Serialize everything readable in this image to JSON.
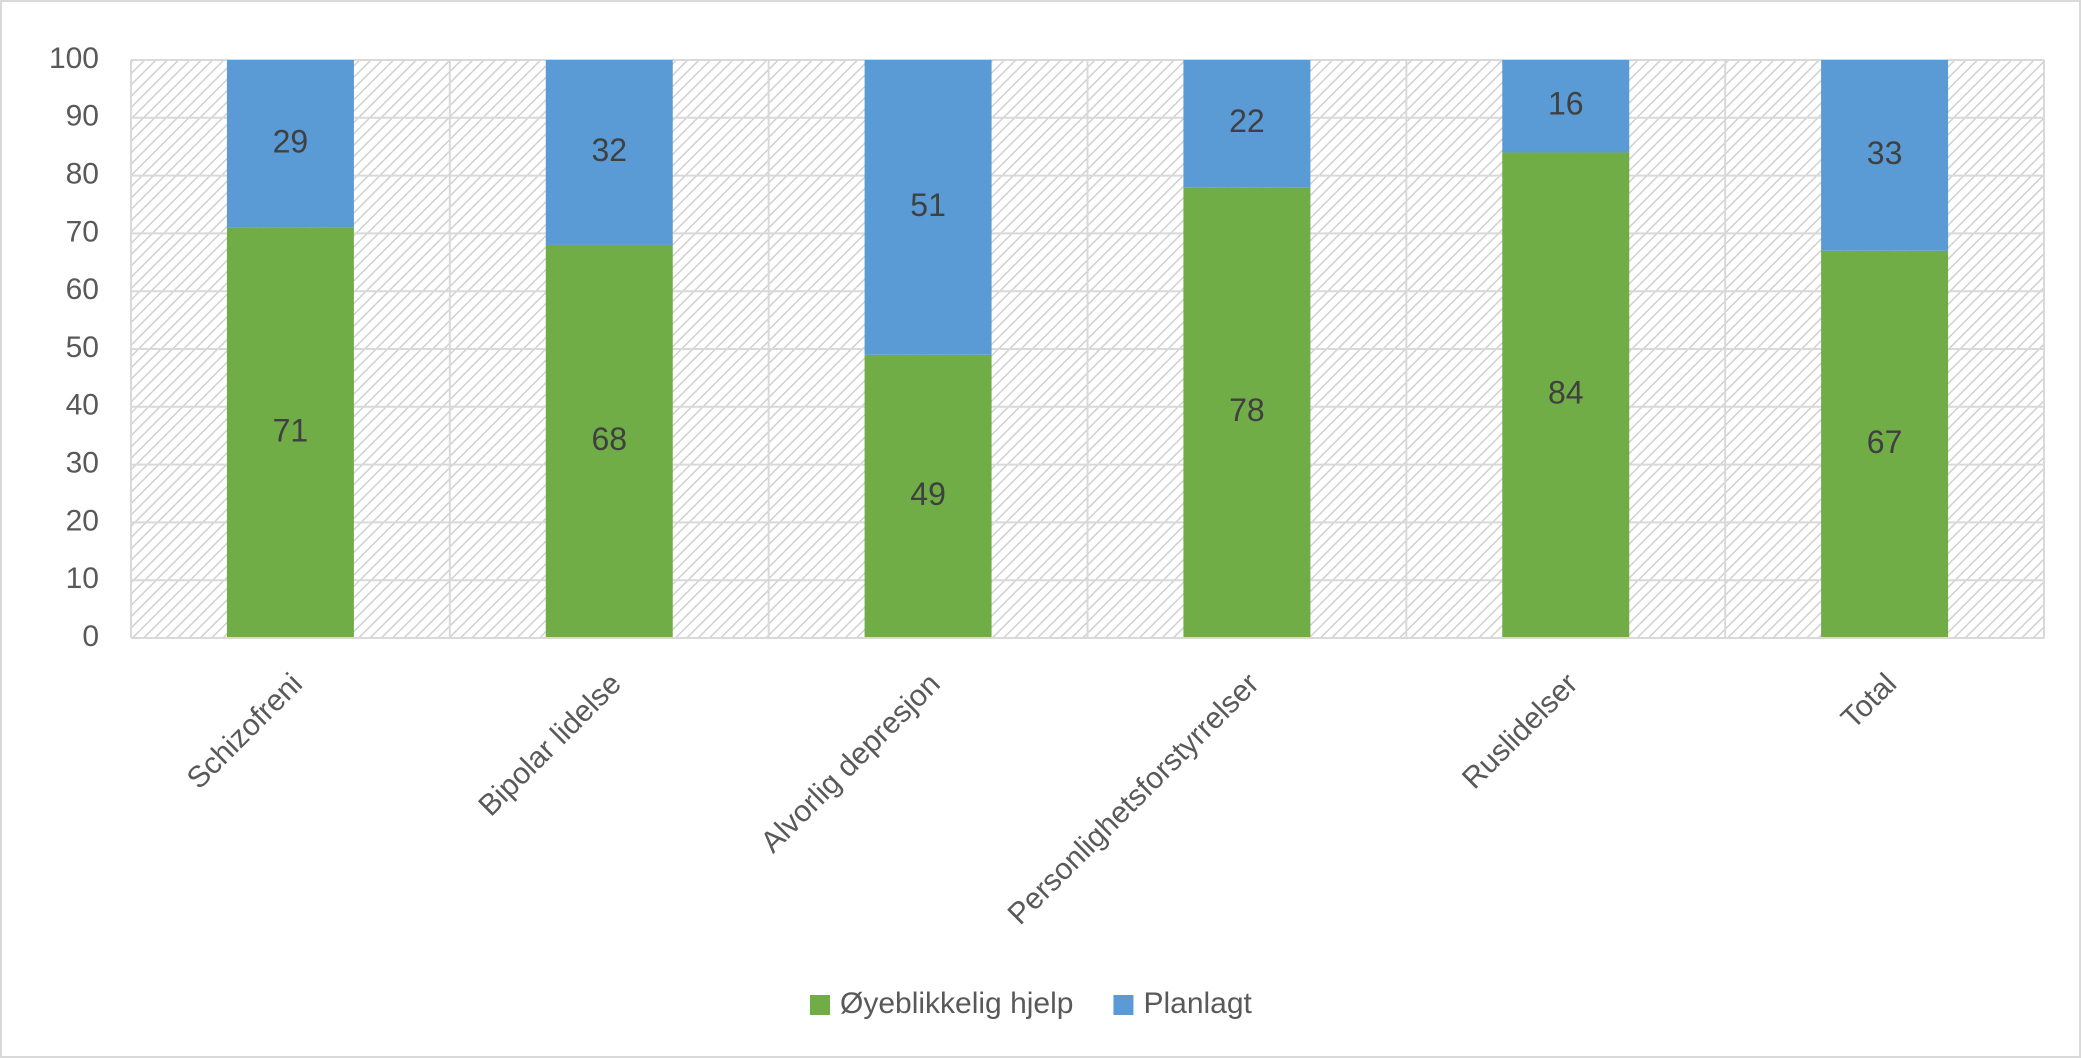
{
  "chart_data": {
    "type": "bar",
    "stacked": true,
    "categories": [
      "Schizofreni",
      "Bipolar lidelse",
      "Alvorlig depresjon",
      "Personlighetsforstyrrelser",
      "Ruslidelser",
      "Total"
    ],
    "series": [
      {
        "name": "Øyeblikkelig hjelp",
        "color": "#70ad47",
        "values": [
          71,
          68,
          49,
          78,
          84,
          67
        ]
      },
      {
        "name": "Planlagt",
        "color": "#5b9bd5",
        "values": [
          29,
          32,
          51,
          22,
          16,
          33
        ]
      }
    ],
    "ylim": [
      0,
      100
    ],
    "yticks": [
      0,
      10,
      20,
      30,
      40,
      50,
      60,
      70,
      80,
      90,
      100
    ],
    "grid": true,
    "legend": "bottom"
  }
}
